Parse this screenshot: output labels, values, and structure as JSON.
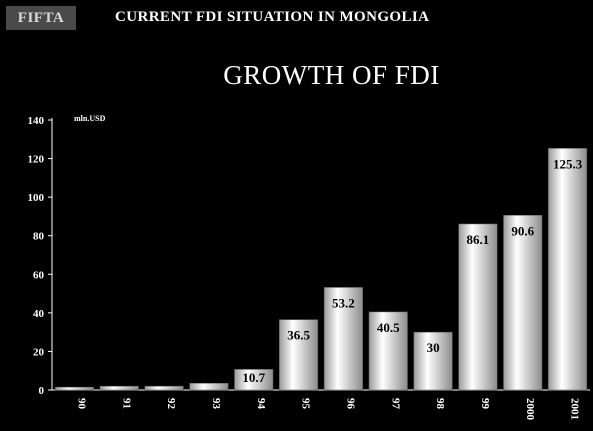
{
  "header": {
    "logo_text": "FIFTA",
    "title": "CURRENT FDI SITUATION IN MONGOLIA"
  },
  "chart_data": {
    "type": "bar",
    "title": "GROWTH OF FDI",
    "unit_label": "mln.USD",
    "categories": [
      "90",
      "91",
      "92",
      "93",
      "94",
      "95",
      "96",
      "97",
      "98",
      "99",
      "2000",
      "2001"
    ],
    "values": [
      1.5,
      2,
      2,
      3.5,
      10.7,
      36.5,
      53.2,
      40.5,
      30,
      86.1,
      90.6,
      125.3
    ],
    "data_labels": [
      "",
      "",
      "",
      "",
      "10.7",
      "36.5",
      "53.2",
      "40.5",
      "30",
      "86.1",
      "90.6",
      "125.3"
    ],
    "ylim": [
      0,
      140
    ],
    "yticks": [
      0,
      20,
      40,
      60,
      80,
      100,
      120,
      140
    ],
    "grid": false,
    "legend": "none",
    "colors": {
      "plot_background": "#000000",
      "bar_light": "#ffffff",
      "bar_dark": "#8c8c8c",
      "axis": "#ffffff"
    }
  }
}
